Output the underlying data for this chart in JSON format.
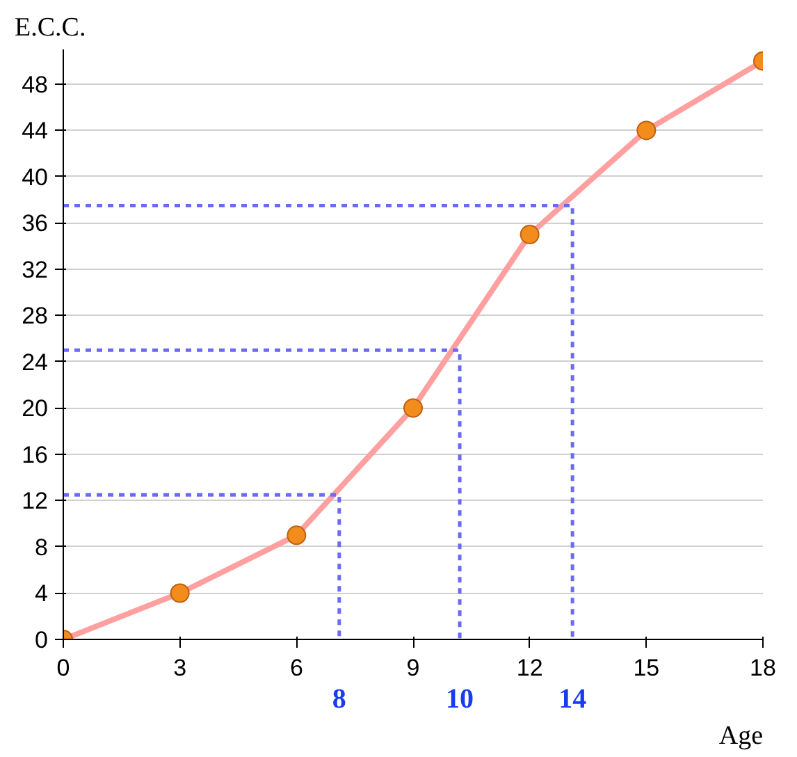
{
  "chart_data": {
    "type": "line",
    "xlabel": "Age",
    "ylabel": "E.C.C.",
    "x": [
      0,
      3,
      6,
      9,
      12,
      15,
      18
    ],
    "series": [
      {
        "color": "#ffa0a0",
        "colors": [
          "#f28c1c",
          "#f28c1c",
          "#f28c1c",
          "#f28c1c",
          "#f28c1c",
          "#f28c1c",
          "#f28c1c"
        ],
        "values": [
          0,
          4,
          9,
          20,
          35,
          44,
          50
        ]
      },
      {
        "type": "line",
        "color": "#6a6af5",
        "line_style": "dashed",
        "marker": "none",
        "x": [
          0,
          7.1,
          7.1
        ],
        "values": [
          12.5,
          12.5,
          0
        ]
      },
      {
        "type": "line",
        "color": "#6a6af5",
        "line_style": "dashed",
        "marker": "none",
        "x": [
          0,
          10.2,
          10.2
        ],
        "values": [
          25,
          25,
          0
        ]
      },
      {
        "type": "line",
        "color": "#6a6af5",
        "line_style": "dashed",
        "marker": "none",
        "x": [
          0,
          13.1,
          13.1
        ],
        "values": [
          37.5,
          37.5,
          0
        ]
      }
    ],
    "annotations": [
      "8",
      "10",
      "14"
    ],
    "xlim": [
      0,
      18
    ],
    "ylim": [
      0,
      51
    ],
    "xticks": [
      0,
      3,
      6,
      9,
      12,
      15,
      18
    ],
    "yticks": [
      0,
      4,
      8,
      12,
      16,
      20,
      24,
      28,
      32,
      36,
      40,
      44,
      48
    ],
    "grid": "y",
    "marker": "circle",
    "line_style": "solid"
  }
}
